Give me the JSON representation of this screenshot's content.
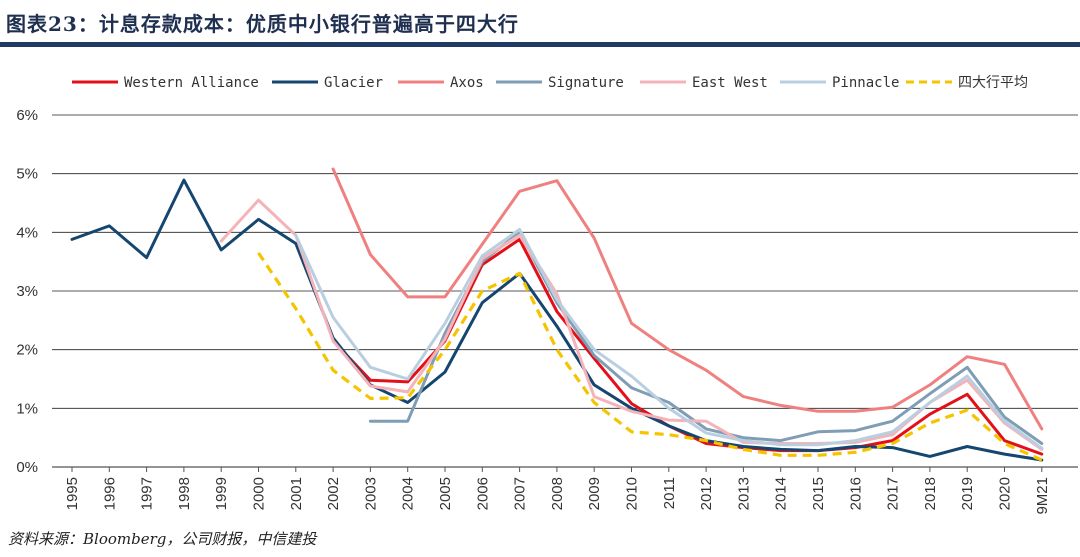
{
  "header": {
    "title": "图表23：计息存款成本：优质中小银行普遍高于四大行"
  },
  "footer": {
    "source": "资料来源：Bloomberg，公司财报，中信建投"
  },
  "chart_data": {
    "type": "line",
    "title": "",
    "xlabel": "",
    "ylabel": "",
    "ylim": [
      0,
      0.06
    ],
    "yticks": [
      "0%",
      "1%",
      "2%",
      "3%",
      "4%",
      "5%",
      "6%"
    ],
    "grid": "horizontal",
    "legend_position": "top",
    "categories": [
      "1995",
      "1996",
      "1997",
      "1998",
      "1999",
      "2000",
      "2001",
      "2002",
      "2003",
      "2004",
      "2005",
      "2006",
      "2007",
      "2008",
      "2009",
      "2010",
      "2011",
      "2012",
      "2013",
      "2014",
      "2015",
      "2016",
      "2017",
      "2018",
      "2019",
      "2020",
      "9M21"
    ],
    "series": [
      {
        "name": "Western Alliance",
        "color": "#e3101a",
        "dash": false,
        "values": [
          null,
          null,
          null,
          null,
          null,
          null,
          null,
          0.0215,
          0.0148,
          0.0145,
          0.0215,
          0.0345,
          0.0388,
          0.0265,
          0.0185,
          0.0108,
          0.007,
          0.004,
          0.0033,
          0.0028,
          0.0028,
          0.0033,
          0.0045,
          0.009,
          0.0124,
          0.0045,
          0.0022
        ]
      },
      {
        "name": "Glacier",
        "color": "#14466f",
        "dash": false,
        "values": [
          0.0388,
          0.0411,
          0.0357,
          0.0489,
          0.037,
          0.0422,
          0.0381,
          0.022,
          0.014,
          0.011,
          0.0162,
          0.028,
          0.033,
          0.024,
          0.014,
          0.01,
          0.007,
          0.0045,
          0.0035,
          0.003,
          0.0028,
          0.0035,
          0.0033,
          0.0018,
          0.0035,
          0.0022,
          0.0012
        ]
      },
      {
        "name": "Axos",
        "color": "#f08080",
        "dash": false,
        "values": [
          null,
          null,
          null,
          null,
          null,
          null,
          null,
          0.0508,
          0.0362,
          0.029,
          0.029,
          0.038,
          0.047,
          0.0488,
          0.039,
          0.0245,
          0.02,
          0.0165,
          0.012,
          0.0105,
          0.0095,
          0.0095,
          0.0102,
          0.014,
          0.0188,
          0.0175,
          0.0065
        ]
      },
      {
        "name": "Signature",
        "color": "#7f9db4",
        "dash": false,
        "values": [
          null,
          null,
          null,
          null,
          null,
          null,
          null,
          null,
          0.0078,
          0.0078,
          0.0228,
          0.035,
          0.04,
          0.028,
          0.019,
          0.0135,
          0.011,
          0.0065,
          0.005,
          0.0045,
          0.006,
          0.0062,
          0.0078,
          0.0125,
          0.017,
          0.0085,
          0.004
        ]
      },
      {
        "name": "East West",
        "color": "#f4b3b9",
        "dash": false,
        "values": [
          null,
          null,
          null,
          null,
          0.0385,
          0.0455,
          0.0395,
          0.0215,
          0.0138,
          0.0128,
          0.0218,
          0.0355,
          0.0395,
          0.0295,
          0.012,
          0.0095,
          0.008,
          0.0078,
          0.0042,
          0.004,
          0.004,
          0.0042,
          0.0055,
          0.011,
          0.0148,
          0.0075,
          0.003
        ]
      },
      {
        "name": "Pinnacle",
        "color": "#b9cfe0",
        "dash": false,
        "values": [
          null,
          null,
          null,
          null,
          null,
          null,
          0.0395,
          0.0255,
          0.017,
          0.015,
          0.0245,
          0.036,
          0.0405,
          0.0285,
          0.02,
          0.0155,
          0.01,
          0.0058,
          0.0045,
          0.0038,
          0.0038,
          0.0045,
          0.006,
          0.011,
          0.0155,
          0.0078,
          0.0032
        ]
      },
      {
        "name": "四大行平均",
        "color": "#f5c400",
        "dash": true,
        "values": [
          null,
          null,
          null,
          null,
          null,
          0.0365,
          0.027,
          0.0165,
          0.0117,
          0.0118,
          0.02,
          0.03,
          0.033,
          0.02,
          0.011,
          0.006,
          0.0055,
          0.0045,
          0.003,
          0.002,
          0.002,
          0.0025,
          0.004,
          0.0075,
          0.0097,
          0.004,
          0.0012
        ]
      }
    ]
  }
}
